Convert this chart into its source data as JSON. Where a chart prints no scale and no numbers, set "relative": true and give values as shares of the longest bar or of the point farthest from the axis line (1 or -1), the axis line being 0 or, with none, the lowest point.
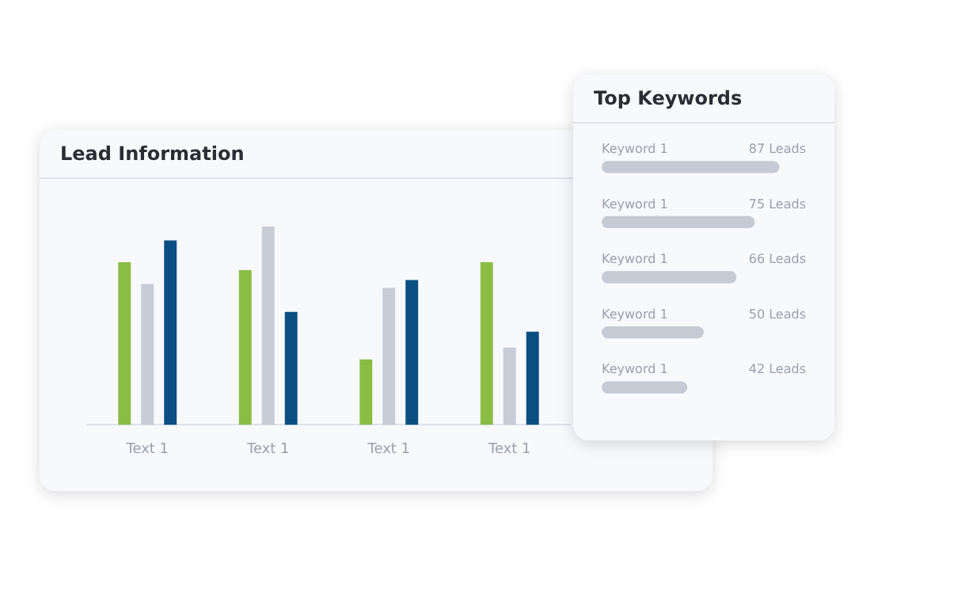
{
  "chart_data": [
    {
      "type": "bar",
      "title": "Lead Information",
      "categories": [
        "Text 1",
        "Text 1",
        "Text 1",
        "Text 1"
      ],
      "relative": true,
      "series": [
        {
          "color": "#8bbd45",
          "values": [
            0.82,
            0.78,
            0.33,
            0.82
          ]
        },
        {
          "color": "#c7ccd6",
          "values": [
            0.71,
            1,
            0.69,
            0.39
          ]
        },
        {
          "color": "#0b4f82",
          "values": [
            0.93,
            0.57,
            0.73,
            0.47
          ]
        }
      ]
    },
    {
      "type": "bar",
      "orientation": "horizontal",
      "title": "Top Keywords",
      "categories": [
        "Keyword 1",
        "Keyword 1",
        "Keyword 1",
        "Keyword 1",
        "Keyword 1"
      ],
      "values": [
        87,
        75,
        66,
        50,
        42
      ],
      "color": "#c5cad4",
      "value_labels": [
        "87 Leads",
        "75 Leads",
        "66 Leads",
        "50 Leads",
        "42 Leads"
      ]
    }
  ]
}
